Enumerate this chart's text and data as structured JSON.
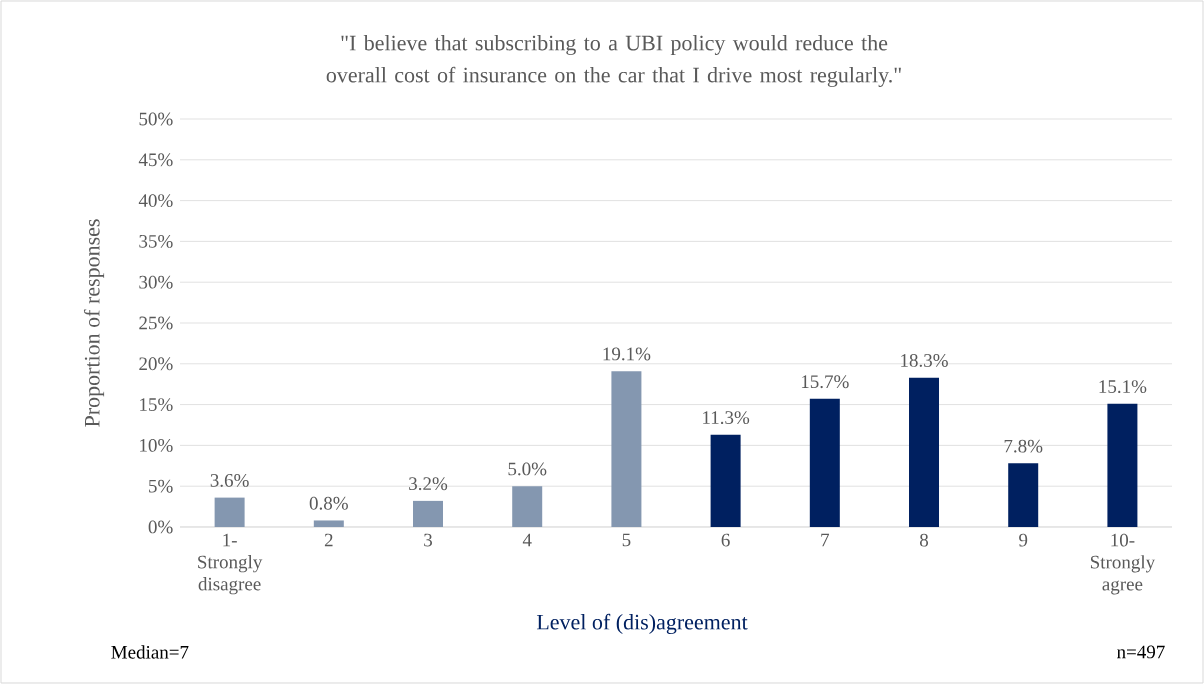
{
  "chart_data": {
    "type": "bar",
    "title": "\"I believe that subscribing to a UBI policy would reduce the overall cost of insurance on the car that I drive most regularly.\"",
    "xlabel": "Level of (dis)agreement",
    "ylabel": "Proportion of responses",
    "categories": [
      "1- Strongly disagree",
      "2",
      "3",
      "4",
      "5",
      "6",
      "7",
      "8",
      "9",
      "10- Strongly agree"
    ],
    "values": [
      3.6,
      0.8,
      3.2,
      5.0,
      19.1,
      11.3,
      15.7,
      18.3,
      7.8,
      15.1
    ],
    "value_labels": [
      "3.6%",
      "0.8%",
      "3.2%",
      "5.0%",
      "19.1%",
      "11.3%",
      "15.7%",
      "18.3%",
      "7.8%",
      "15.1%"
    ],
    "colors": [
      "#8497b0",
      "#8497b0",
      "#8497b0",
      "#8497b0",
      "#8497b0",
      "#002060",
      "#002060",
      "#002060",
      "#002060",
      "#002060"
    ],
    "ylim": [
      0,
      50
    ],
    "yticks": [
      {
        "value": 0,
        "label": "0%"
      },
      {
        "value": 5,
        "label": "5%"
      },
      {
        "value": 10,
        "label": "10%"
      },
      {
        "value": 15,
        "label": "15%"
      },
      {
        "value": 20,
        "label": "20%"
      },
      {
        "value": 25,
        "label": "25%"
      },
      {
        "value": 30,
        "label": "30%"
      },
      {
        "value": 35,
        "label": "35%"
      },
      {
        "value": 40,
        "label": "40%"
      },
      {
        "value": 45,
        "label": "45%"
      },
      {
        "value": 50,
        "label": "50%"
      }
    ],
    "grid": "y",
    "annotations": [
      "Median=7",
      "n=497"
    ]
  }
}
